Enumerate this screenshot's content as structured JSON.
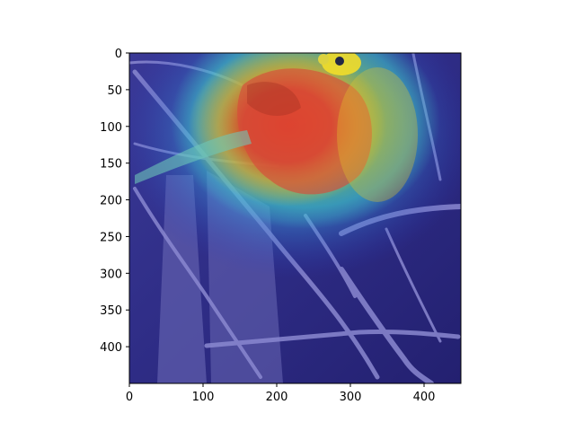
{
  "image": {
    "description_tags": [
      "bird-photo",
      "gradcam-heatmap-overlay"
    ],
    "colors": {
      "heat_hot": "#e8321e",
      "heat_warm": "#f5c81a",
      "heat_mid": "#3fd6c3",
      "heat_cool": "#2b3cc8",
      "heat_cold": "#1a1870",
      "bird_body": "#d84a3a",
      "bird_head": "#f2dd2a",
      "branch": "#7a78c8",
      "background_tint": "#3d3a9a"
    }
  },
  "axes": {
    "x_ticks": [
      {
        "value": 0,
        "label": "0"
      },
      {
        "value": 100,
        "label": "100"
      },
      {
        "value": 200,
        "label": "200"
      },
      {
        "value": 300,
        "label": "300"
      },
      {
        "value": 400,
        "label": "400"
      }
    ],
    "y_ticks": [
      {
        "value": 0,
        "label": "0"
      },
      {
        "value": 50,
        "label": "50"
      },
      {
        "value": 100,
        "label": "100"
      },
      {
        "value": 150,
        "label": "150"
      },
      {
        "value": 200,
        "label": "200"
      },
      {
        "value": 250,
        "label": "250"
      },
      {
        "value": 300,
        "label": "300"
      },
      {
        "value": 350,
        "label": "350"
      },
      {
        "value": 400,
        "label": "400"
      }
    ],
    "xlim": [
      0,
      450
    ],
    "ylim": [
      0,
      450
    ],
    "y_inverted": true
  }
}
